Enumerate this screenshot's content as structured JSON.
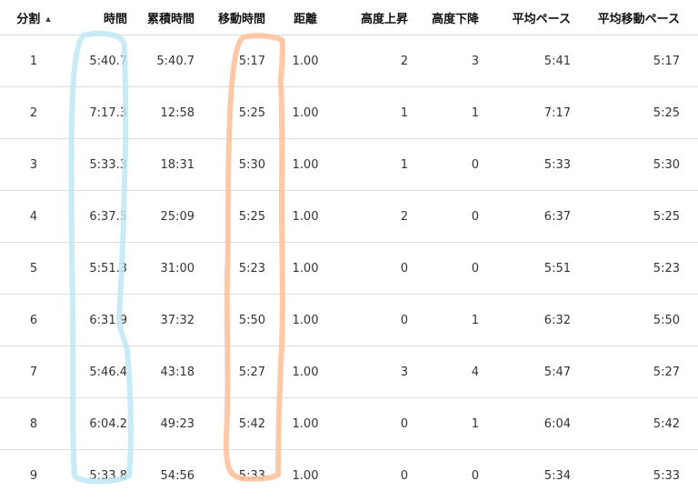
{
  "table": {
    "headers": [
      "分割",
      "時間",
      "累積時間",
      "移動時間",
      "距離",
      "高度上昇",
      "高度下降",
      "平均ペース",
      "平均移動ペース"
    ],
    "sort": {
      "column": "分割",
      "direction": "ascending",
      "indicator": "▲"
    },
    "rows": [
      [
        "1",
        "5:40.7",
        "5:40.7",
        "5:17",
        "1.00",
        "2",
        "3",
        "5:41",
        "5:17"
      ],
      [
        "2",
        "7:17.3",
        "12:58",
        "5:25",
        "1.00",
        "1",
        "1",
        "7:17",
        "5:25"
      ],
      [
        "3",
        "5:33.3",
        "18:31",
        "5:30",
        "1.00",
        "1",
        "0",
        "5:33",
        "5:30"
      ],
      [
        "4",
        "6:37.5",
        "25:09",
        "5:25",
        "1.00",
        "2",
        "0",
        "6:37",
        "5:25"
      ],
      [
        "5",
        "5:51.3",
        "31:00",
        "5:23",
        "1.00",
        "0",
        "0",
        "5:51",
        "5:23"
      ],
      [
        "6",
        "6:31.9",
        "37:32",
        "5:50",
        "1.00",
        "0",
        "1",
        "6:32",
        "5:50"
      ],
      [
        "7",
        "5:46.4",
        "43:18",
        "5:27",
        "1.00",
        "3",
        "4",
        "5:47",
        "5:27"
      ],
      [
        "8",
        "6:04.2",
        "49:23",
        "5:42",
        "1.00",
        "0",
        "1",
        "6:04",
        "5:42"
      ],
      [
        "9",
        "5:33.8",
        "54:56",
        "5:33",
        "1.00",
        "0",
        "0",
        "5:34",
        "5:33"
      ]
    ]
  },
  "annotations": {
    "time_highlight_color": "#bfe8f5",
    "moving_time_highlight_color": "#ffbe96"
  }
}
